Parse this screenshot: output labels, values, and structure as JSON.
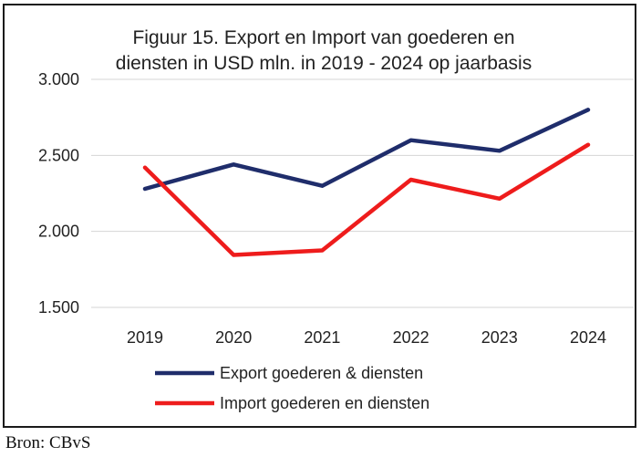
{
  "chart_data": {
    "type": "line",
    "title_line1": "Figuur 15. Export en Import van goederen en",
    "title_line2": "diensten in USD mln. in 2019 - 2024 op jaarbasis",
    "categories": [
      "2019",
      "2020",
      "2021",
      "2022",
      "2023",
      "2024"
    ],
    "ylim": [
      1500,
      3000
    ],
    "yticks": [
      1500,
      2000,
      2500,
      3000
    ],
    "ytick_labels": [
      "1.500",
      "2.000",
      "2.500",
      "3.000"
    ],
    "grid": true,
    "legend_position": "bottom",
    "series": [
      {
        "name": "Export goederen & diensten",
        "color": "#1f2d6b",
        "values": [
          2280,
          2440,
          2300,
          2600,
          2530,
          2800
        ]
      },
      {
        "name": "Import goederen en diensten",
        "color": "#ee1c1c",
        "values": [
          2420,
          1845,
          1875,
          2340,
          2215,
          2570
        ]
      }
    ]
  },
  "source": "Bron: CBvS"
}
